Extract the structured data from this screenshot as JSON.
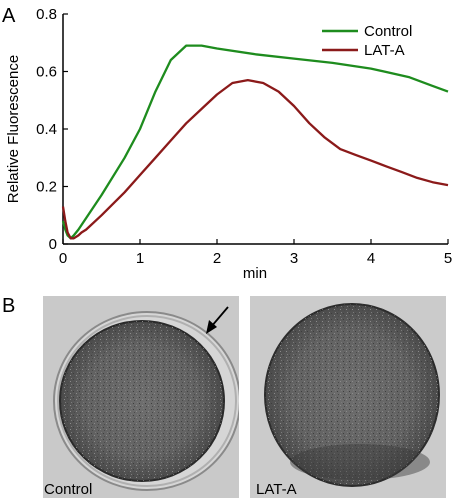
{
  "panel_a": {
    "letter": "A"
  },
  "panel_b": {
    "letter": "B",
    "images": [
      {
        "label": "Control"
      },
      {
        "label": "LAT-A"
      }
    ]
  },
  "chart_data": {
    "type": "line",
    "xlabel": "min",
    "ylabel": "Relative Fluorescence",
    "xlim": [
      0,
      5
    ],
    "ylim": [
      0,
      0.8
    ],
    "xticks": [
      0,
      1,
      2,
      3,
      4,
      5
    ],
    "yticks": [
      0,
      0.2,
      0.4,
      0.6,
      0.8
    ],
    "ytick_labels": [
      "0",
      "0.2",
      "0.4",
      "0.6",
      "0.8"
    ],
    "legend_position": "top-right",
    "grid": false,
    "series": [
      {
        "name": "Control",
        "color": "#1e8c1e",
        "x": [
          0,
          0.03,
          0.06,
          0.1,
          0.14,
          0.2,
          0.3,
          0.5,
          0.8,
          1.0,
          1.2,
          1.4,
          1.6,
          1.8,
          2.0,
          2.5,
          3.0,
          3.5,
          4.0,
          4.5,
          4.8,
          5.0
        ],
        "y": [
          0.08,
          0.05,
          0.03,
          0.02,
          0.03,
          0.05,
          0.09,
          0.17,
          0.3,
          0.4,
          0.53,
          0.64,
          0.69,
          0.69,
          0.68,
          0.66,
          0.645,
          0.63,
          0.61,
          0.58,
          0.55,
          0.53
        ]
      },
      {
        "name": "LAT-A",
        "color": "#8b1a1a",
        "x": [
          0,
          0.03,
          0.06,
          0.1,
          0.14,
          0.2,
          0.24,
          0.3,
          0.5,
          0.8,
          1.0,
          1.2,
          1.4,
          1.6,
          1.8,
          2.0,
          2.2,
          2.4,
          2.6,
          2.8,
          3.0,
          3.2,
          3.4,
          3.6,
          3.8,
          4.0,
          4.2,
          4.4,
          4.6,
          4.8,
          5.0
        ],
        "y": [
          0.13,
          0.08,
          0.04,
          0.02,
          0.02,
          0.03,
          0.04,
          0.05,
          0.1,
          0.18,
          0.24,
          0.3,
          0.36,
          0.42,
          0.47,
          0.52,
          0.56,
          0.57,
          0.56,
          0.53,
          0.48,
          0.42,
          0.37,
          0.33,
          0.31,
          0.29,
          0.27,
          0.25,
          0.23,
          0.215,
          0.205
        ]
      }
    ]
  }
}
